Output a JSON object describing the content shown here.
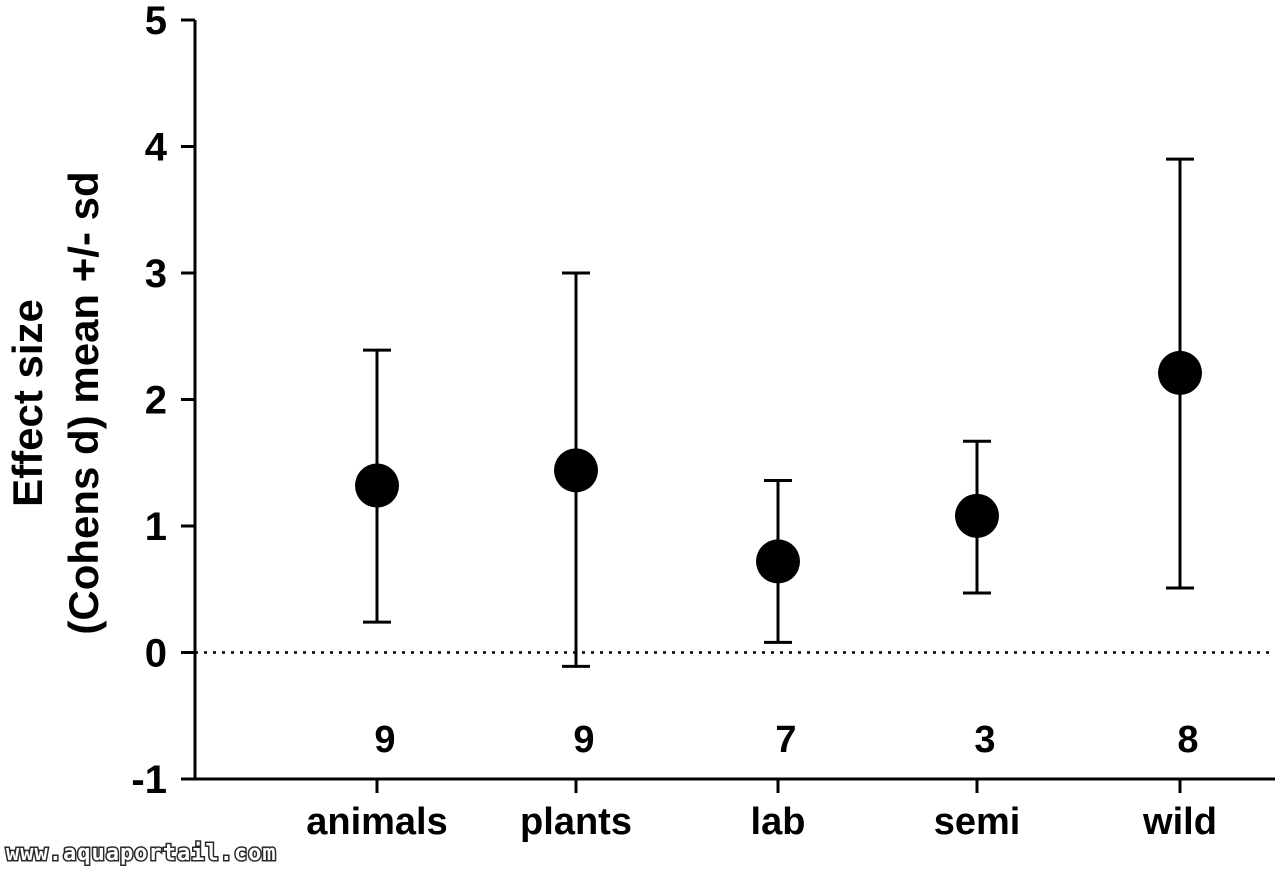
{
  "chart_data": {
    "type": "scatter",
    "ylabel_lines": [
      "Effect size",
      "(Cohens d) mean +/- sd"
    ],
    "ylim": [
      -1,
      5
    ],
    "yticks": [
      -1,
      0,
      1,
      2,
      3,
      4,
      5
    ],
    "reference_line": 0,
    "categories": [
      "animals",
      "plants",
      "lab",
      "semi",
      "wild"
    ],
    "means": [
      1.32,
      1.44,
      0.72,
      1.08,
      2.21
    ],
    "err_low": [
      0.24,
      -0.11,
      0.08,
      0.47,
      0.51
    ],
    "err_high": [
      2.39,
      3.0,
      1.36,
      1.67,
      3.9
    ],
    "n": [
      "9",
      "9",
      "7",
      "3",
      "8"
    ],
    "grid": false,
    "legend": "none",
    "marker_color": "#000000"
  },
  "watermark": "www.aquaportail.com"
}
